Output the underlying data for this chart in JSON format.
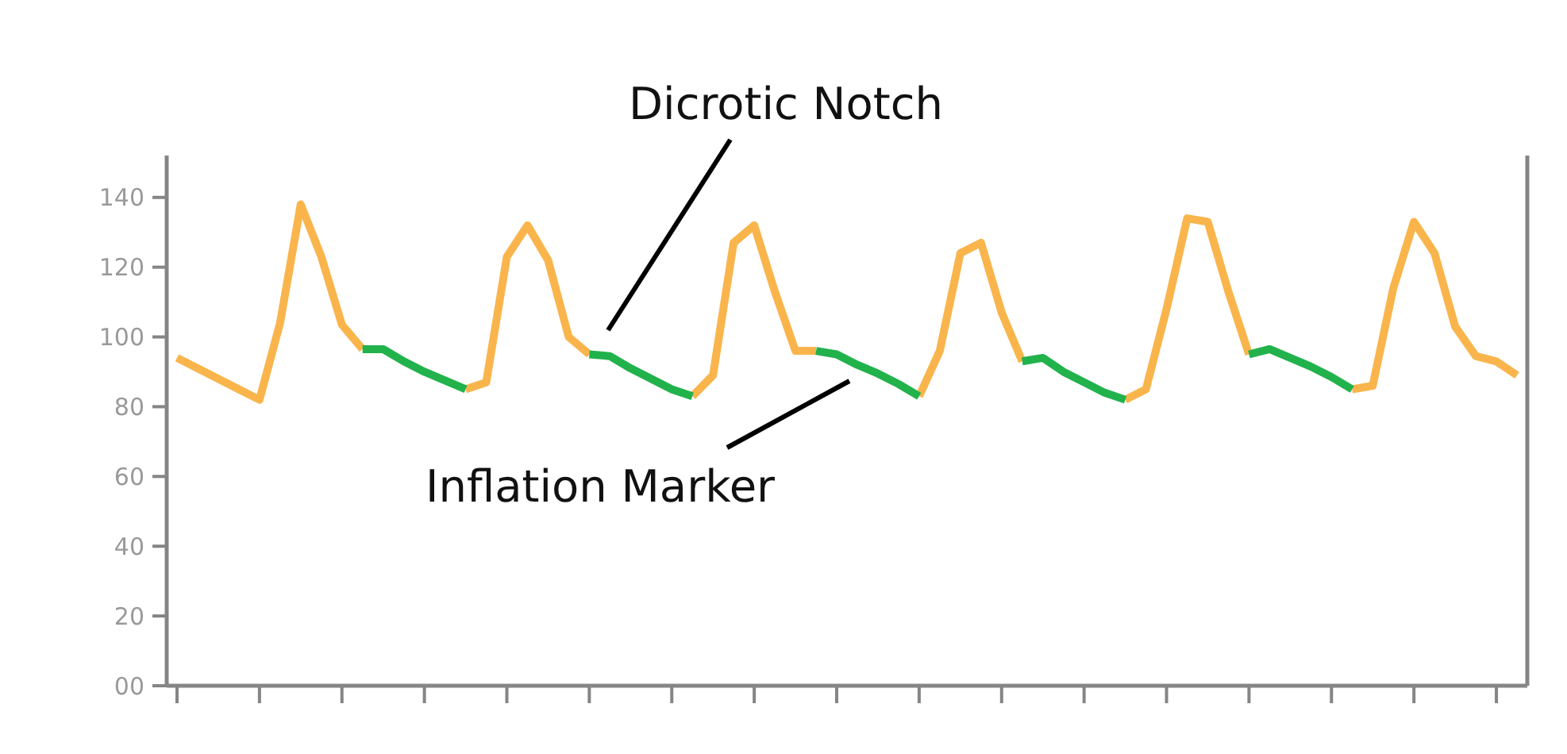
{
  "chart_data": {
    "type": "line",
    "categories": [
      null,
      null,
      null,
      null,
      null,
      null,
      null,
      null,
      null,
      null,
      null,
      null,
      null,
      null,
      null,
      null,
      null,
      null,
      null,
      null,
      null,
      null,
      null,
      null,
      null,
      null,
      null,
      null,
      null,
      null,
      null,
      null,
      null,
      null,
      null,
      null,
      null,
      null,
      null,
      null,
      null,
      null,
      null,
      null,
      null,
      null,
      null,
      null,
      null,
      null,
      null,
      null,
      null,
      null,
      null,
      null,
      null,
      null,
      null,
      null,
      null,
      null,
      null,
      null,
      null,
      null
    ],
    "ylim": [
      0,
      152
    ],
    "yticks": [
      {
        "value": 0,
        "label": "00"
      },
      20,
      40,
      60,
      80,
      100,
      120,
      140
    ],
    "grid": false,
    "marker": "none",
    "line_style": "solid",
    "series": [
      {
        "color": "#f9b54c",
        "values": [
          94,
          91,
          88,
          85,
          82,
          104,
          138,
          123,
          103.5,
          96.5,
          null,
          null,
          null,
          null,
          85,
          87,
          123,
          132,
          122,
          100,
          95,
          null,
          null,
          null,
          null,
          83,
          89,
          127,
          132,
          113,
          96,
          96,
          null,
          null,
          null,
          null,
          83,
          96,
          124,
          127,
          107,
          93,
          null,
          null,
          null,
          null,
          82,
          85,
          108,
          134,
          133,
          113,
          95,
          null,
          null,
          null,
          null,
          85,
          86,
          114,
          133,
          124,
          103,
          94.5,
          93,
          89
        ]
      },
      {
        "color": "#22b24c",
        "values": [
          null,
          null,
          null,
          null,
          null,
          null,
          null,
          null,
          null,
          96.5,
          96.5,
          93,
          90,
          87.5,
          85,
          null,
          null,
          null,
          null,
          null,
          95,
          94.5,
          91,
          88,
          85,
          83,
          null,
          null,
          null,
          null,
          null,
          96,
          95,
          92,
          89.5,
          86.5,
          83,
          null,
          null,
          null,
          null,
          93,
          94,
          90,
          87,
          84,
          82,
          null,
          null,
          null,
          null,
          null,
          95,
          96.5,
          94,
          91.5,
          88.5,
          85,
          null,
          null,
          null,
          null,
          null,
          null,
          null,
          null
        ]
      }
    ],
    "annotations": [
      "Dicrotic Notch",
      "Inflation Marker"
    ]
  }
}
